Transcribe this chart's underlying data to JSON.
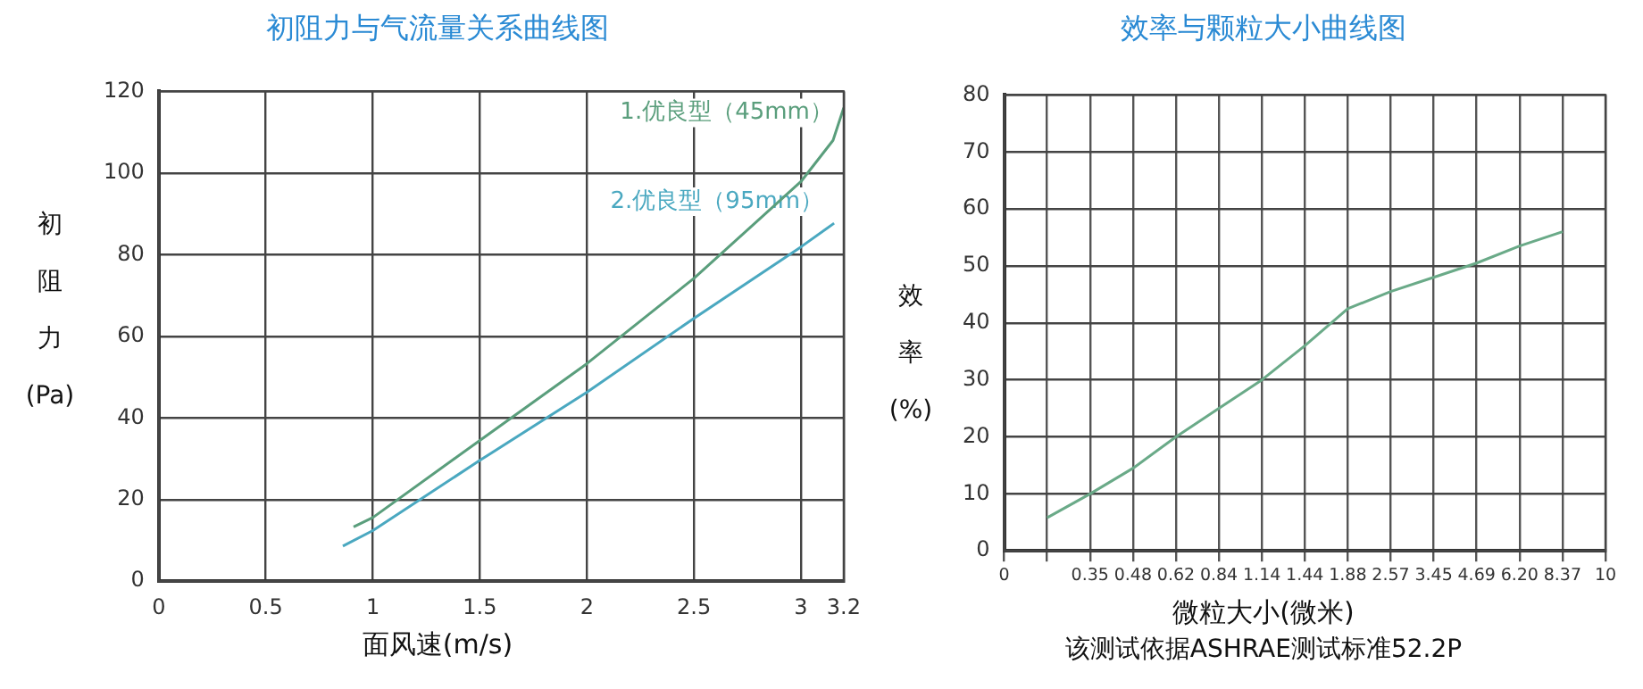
{
  "chart_data": [
    {
      "type": "line",
      "title": "初阻力与气流量关系曲线图",
      "xlabel": "面风速(m/s)",
      "ylabel": "初阻力(Pa)",
      "xlim": [
        0,
        3.2
      ],
      "xticks": [
        0,
        0.5,
        1,
        1.5,
        2,
        2.5,
        3,
        3.2
      ],
      "ylim": [
        0,
        120
      ],
      "yticks": [
        0,
        20,
        40,
        60,
        80,
        100,
        120
      ],
      "grid": true,
      "legend": false,
      "marker": "none",
      "series": [
        {
          "name": "1.优良型（45mm）",
          "color": "#5a9e7c",
          "x": [
            0.91,
            1,
            1.5,
            2,
            2.5,
            3,
            3.15,
            3.2
          ],
          "values": [
            13.3,
            15.6,
            34.5,
            53.3,
            74.2,
            97.9,
            108,
            116
          ]
        },
        {
          "name": "2.优良型（95mm）",
          "color": "#4aa8c0",
          "x": [
            0.86,
            1,
            1.5,
            2,
            2.5,
            3,
            3.155
          ],
          "values": [
            8.6,
            12.4,
            29.6,
            46.3,
            64.4,
            81.9,
            87.7
          ]
        }
      ]
    },
    {
      "type": "line",
      "title": "效率与颗粒大小曲线图",
      "xlabel": "微粒大小(微米)",
      "ylabel": "效率(%)",
      "annotations": [
        "该测试依据ASHRAE测试标准52.2P"
      ],
      "categories": [
        "0",
        null,
        "0.35",
        "0.48",
        "0.62",
        "0.84",
        "1.14",
        "1.44",
        "1.88",
        "2.57",
        "3.45",
        "4.69",
        "6.20",
        "8.37",
        "10"
      ],
      "ylim": [
        0,
        80
      ],
      "yticks": [
        0,
        10,
        20,
        30,
        40,
        50,
        60,
        70,
        80
      ],
      "grid": true,
      "legend": false,
      "marker": "none",
      "series": [
        {
          "color": "#6aaa88",
          "values": [
            null,
            5.8,
            10,
            14.5,
            20,
            25,
            30,
            36,
            42.5,
            45.5,
            48,
            50.5,
            53.5,
            56,
            null
          ]
        }
      ]
    }
  ]
}
